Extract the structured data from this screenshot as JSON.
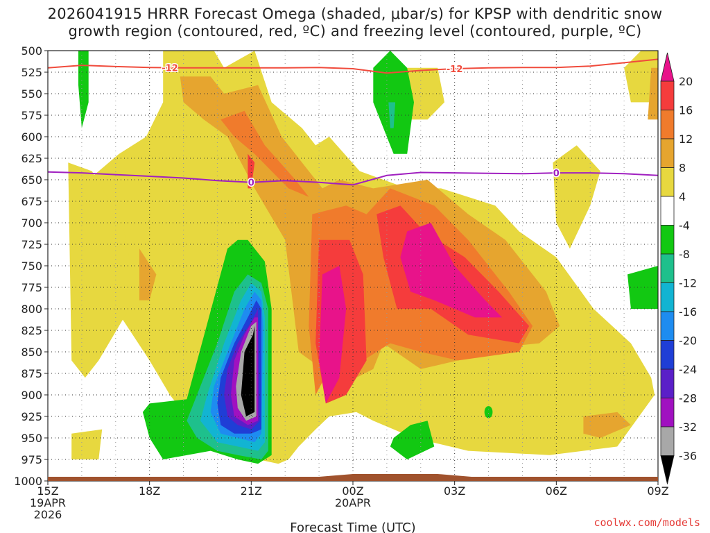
{
  "header": {
    "title_line1": "2026041915 HRRR Forecast Omega (shaded, μbar/s) for KPSP with dendritic snow",
    "title_line2": "growth region (contoured, red, ºC) and freezing level (contoured, purple, ºC)"
  },
  "footer": {
    "credit": "coolwx.com/models"
  },
  "chart_data": {
    "type": "heatmap",
    "title": "2026041915 HRRR Forecast Omega (shaded, μbar/s) for KPSP with dendritic snow growth region (contoured, red, ºC) and freezing level (contoured, purple, ºC)",
    "xlabel": "Forecast Time (UTC)",
    "ylabel": "",
    "x_range_hours": [
      0,
      18
    ],
    "y_range_hpa": [
      500,
      1000
    ],
    "x_ticks": [
      {
        "hour": 0,
        "label": "15Z",
        "date": "19APR",
        "year": "2026"
      },
      {
        "hour": 3,
        "label": "18Z",
        "date": "",
        "year": ""
      },
      {
        "hour": 6,
        "label": "21Z",
        "date": "",
        "year": ""
      },
      {
        "hour": 9,
        "label": "00Z",
        "date": "20APR",
        "year": ""
      },
      {
        "hour": 12,
        "label": "03Z",
        "date": "",
        "year": ""
      },
      {
        "hour": 15,
        "label": "06Z",
        "date": "",
        "year": ""
      },
      {
        "hour": 18,
        "label": "09Z",
        "date": "",
        "year": ""
      }
    ],
    "y_ticks": [
      500,
      525,
      550,
      575,
      600,
      625,
      650,
      675,
      700,
      725,
      750,
      775,
      800,
      825,
      850,
      875,
      900,
      925,
      950,
      975,
      1000
    ],
    "colorbar": {
      "labels": [
        "20",
        "16",
        "12",
        "8",
        "4",
        "-4",
        "-8",
        "-12",
        "-16",
        "-20",
        "-24",
        "-28",
        "-32",
        "-36"
      ],
      "bins": [
        {
          "range": ">20",
          "color": "#e8138a"
        },
        {
          "range": "16 to 20",
          "color": "#f53c3c"
        },
        {
          "range": "12 to 16",
          "color": "#f07b2c"
        },
        {
          "range": "8 to 12",
          "color": "#e6a52f"
        },
        {
          "range": "4 to 8",
          "color": "#e7d83f"
        },
        {
          "range": "-4 to 4",
          "color": "#ffffff"
        },
        {
          "range": "-8 to -4",
          "color": "#12c812"
        },
        {
          "range": "-12 to -8",
          "color": "#1ec08c"
        },
        {
          "range": "-16 to -12",
          "color": "#12b4d2"
        },
        {
          "range": "-20 to -16",
          "color": "#1e8cf0"
        },
        {
          "range": "-24 to -20",
          "color": "#1f3ed6"
        },
        {
          "range": "-28 to -24",
          "color": "#5a1fc8"
        },
        {
          "range": "-32 to -28",
          "color": "#a011c0"
        },
        {
          "range": "-36 to -32",
          "color": "#a8a8a8"
        },
        {
          "range": "<-36",
          "color": "#000000"
        }
      ]
    },
    "contours": [
      {
        "name": "-12C dendritic growth",
        "color": "#f04b3c",
        "label": "-12",
        "points": [
          [
            0,
            520
          ],
          [
            1,
            517
          ],
          [
            2,
            518.5
          ],
          [
            3,
            519.5
          ],
          [
            4,
            520
          ],
          [
            5,
            520
          ],
          [
            6,
            520
          ],
          [
            7,
            520
          ],
          [
            8,
            519.5
          ],
          [
            9,
            521
          ],
          [
            10,
            526
          ],
          [
            11,
            523
          ],
          [
            12,
            521
          ],
          [
            13,
            520
          ],
          [
            14,
            519.5
          ],
          [
            15,
            519.5
          ],
          [
            16,
            518
          ],
          [
            17,
            514
          ],
          [
            18,
            510
          ]
        ],
        "label_at_hours": [
          3.6,
          12.0
        ]
      },
      {
        "name": "0C freezing level",
        "color": "#a020c0",
        "label": "0",
        "points": [
          [
            0,
            641
          ],
          [
            1,
            642
          ],
          [
            2,
            644
          ],
          [
            3,
            646
          ],
          [
            4,
            648
          ],
          [
            5,
            651
          ],
          [
            6,
            653
          ],
          [
            7,
            651
          ],
          [
            8,
            653
          ],
          [
            9,
            656
          ],
          [
            10,
            645
          ],
          [
            11,
            641.5
          ],
          [
            12,
            642
          ],
          [
            13,
            642.5
          ],
          [
            14,
            643
          ],
          [
            15,
            642
          ],
          [
            16,
            642
          ],
          [
            17,
            643
          ],
          [
            18,
            645
          ]
        ],
        "label_at_hours": [
          6.0,
          15.0
        ]
      }
    ],
    "terrain_color": "#a0522d"
  }
}
